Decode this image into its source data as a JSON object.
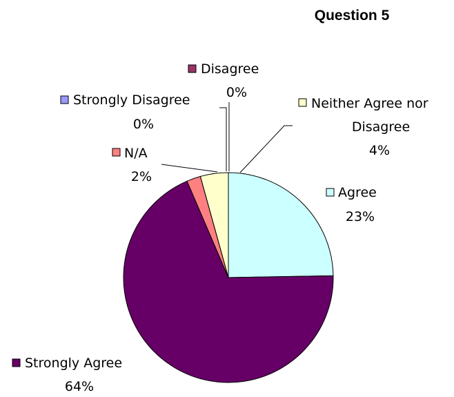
{
  "chart_data": {
    "type": "pie",
    "title": "Question 5",
    "slices": [
      {
        "label": "Agree",
        "pct_label": "23%",
        "value": 23,
        "color": "#ccffff"
      },
      {
        "label": "Strongly Agree",
        "pct_label": "64%",
        "value": 64,
        "color": "#660066"
      },
      {
        "label": "N/A",
        "pct_label": "2%",
        "value": 2,
        "color": "#ff8080"
      },
      {
        "label": "Strongly Disagree",
        "pct_label": "0%",
        "value": 0,
        "color": "#9999ff"
      },
      {
        "label": "Disagree",
        "pct_label": "0%",
        "value": 0,
        "color": "#993366"
      },
      {
        "label": "Neither Agree nor Disagree",
        "pct_label": "4%",
        "value": 4,
        "color": "#ffffcc"
      }
    ]
  }
}
